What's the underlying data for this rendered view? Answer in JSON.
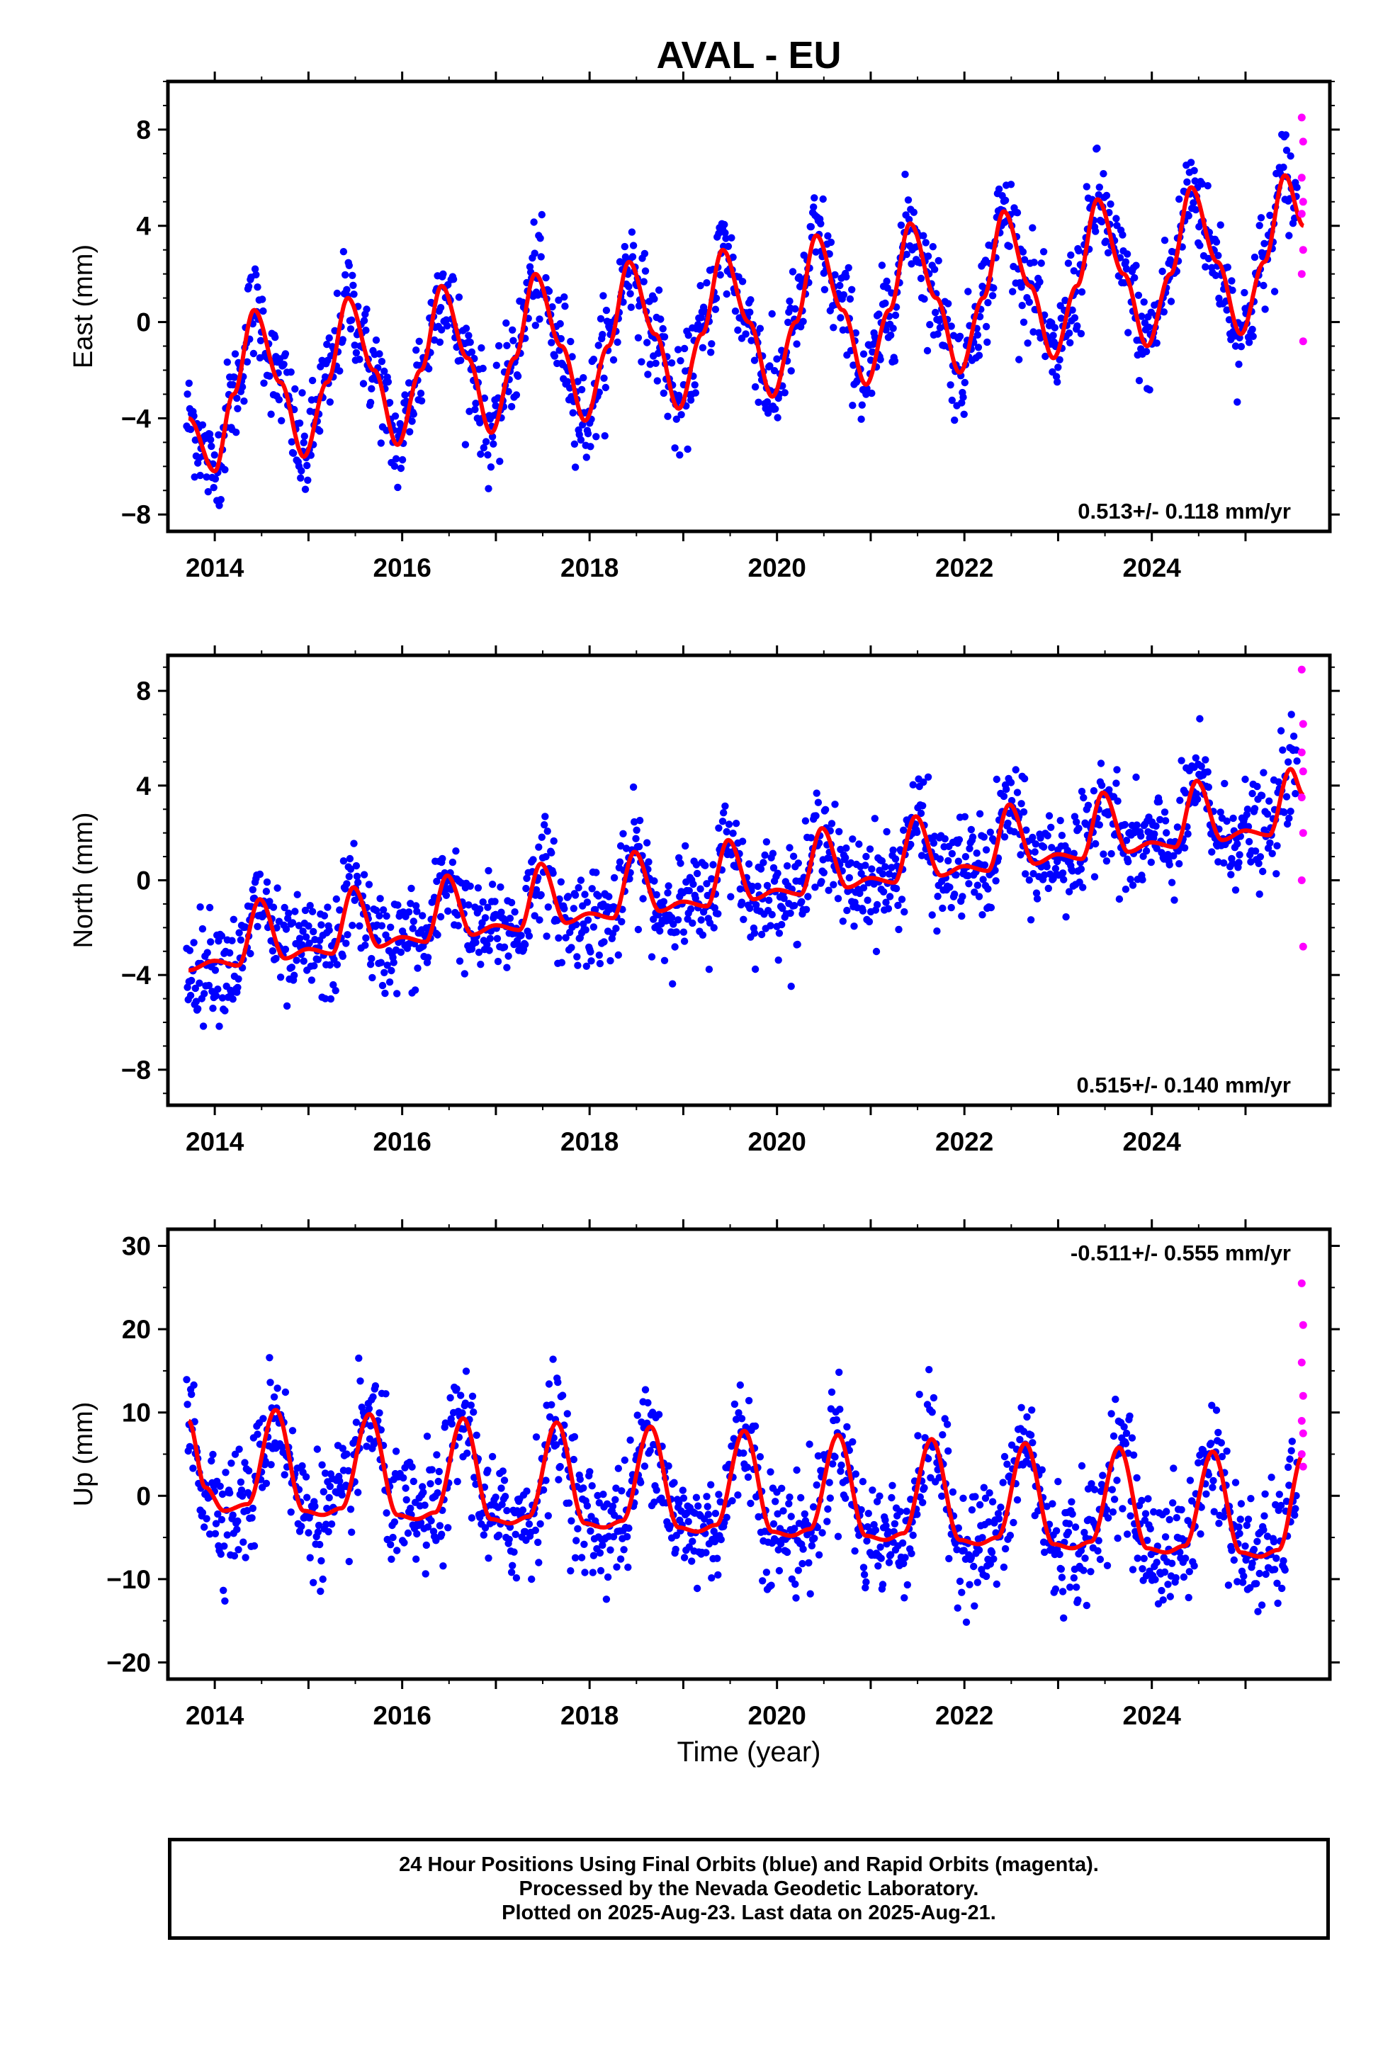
{
  "title": "AVAL - EU",
  "xlabel": "Time (year)",
  "caption": {
    "line1": "24 Hour Positions Using Final Orbits (blue) and Rapid Orbits (magenta).",
    "line2": "Processed by the Nevada Geodetic Laboratory.",
    "line3": "Plotted on 2025-Aug-23. Last data on 2025-Aug-21."
  },
  "colors": {
    "final": "#0000ff",
    "rapid": "#ff00ff",
    "model": "#ff0000",
    "frame": "#000000"
  },
  "chart_data": [
    {
      "type": "scatter",
      "component": "East",
      "ylabel": "East (mm)",
      "xlim": [
        2013.5,
        2025.9
      ],
      "ylim": [
        -8.7,
        10.0
      ],
      "yticks": [
        8,
        4,
        0,
        -4,
        -8
      ],
      "ytick_labels": [
        "8",
        "4",
        "0",
        "−4",
        "−8"
      ],
      "xticks": [
        2014,
        2016,
        2018,
        2020,
        2022,
        2024
      ],
      "xtick_labels": [
        "2014",
        "2016",
        "2018",
        "2020",
        "2022",
        "2024"
      ],
      "rate_label": "0.513+/- 0.118 mm/yr",
      "grid": false,
      "series": [
        {
          "name": "Final Orbits",
          "description": "daily positions, 2013.7–2025.55, scattered around the model"
        },
        {
          "name": "Rapid Orbits",
          "description": "final weeks of data",
          "x": [
            2025.57,
            2025.58,
            2025.59,
            2025.6,
            2025.61,
            2025.62,
            2025.63,
            2025.64
          ],
          "y": [
            8.5,
            7.5,
            6.0,
            5.0,
            4.5,
            3.0,
            2.0,
            -0.8
          ]
        },
        {
          "name": "Model",
          "description": "linear trend plus annual and semiannual terms",
          "x": [
            2013.72,
            2014.0,
            2014.2,
            2014.42,
            2014.7,
            2014.95,
            2015.2,
            2015.42,
            2015.7,
            2015.95,
            2016.2,
            2016.42,
            2016.7,
            2016.95,
            2017.2,
            2017.42,
            2017.7,
            2017.95,
            2018.2,
            2018.42,
            2018.7,
            2018.95,
            2019.2,
            2019.42,
            2019.7,
            2019.95,
            2020.2,
            2020.42,
            2020.7,
            2020.95,
            2021.2,
            2021.42,
            2021.7,
            2021.95,
            2022.2,
            2022.42,
            2022.7,
            2022.95,
            2023.2,
            2023.42,
            2023.7,
            2023.95,
            2024.2,
            2024.42,
            2024.7,
            2024.95,
            2025.2,
            2025.42,
            2025.62
          ],
          "y": [
            -4.0,
            -6.2,
            -3.0,
            0.5,
            -2.5,
            -5.6,
            -2.5,
            1.0,
            -2.0,
            -5.1,
            -2.0,
            1.5,
            -1.5,
            -4.6,
            -1.5,
            2.0,
            -1.0,
            -4.1,
            -1.0,
            2.5,
            -0.5,
            -3.6,
            -0.5,
            3.0,
            0.0,
            -3.1,
            0.0,
            3.6,
            0.5,
            -2.6,
            0.5,
            4.1,
            1.0,
            -2.1,
            1.0,
            4.6,
            1.5,
            -1.5,
            1.5,
            5.1,
            2.0,
            -1.0,
            2.0,
            5.6,
            2.5,
            -0.5,
            2.5,
            6.1,
            4.0
          ]
        }
      ]
    },
    {
      "type": "scatter",
      "component": "North",
      "ylabel": "North (mm)",
      "xlim": [
        2013.5,
        2025.9
      ],
      "ylim": [
        -9.5,
        9.5
      ],
      "yticks": [
        8,
        4,
        0,
        -4,
        -8
      ],
      "ytick_labels": [
        "8",
        "4",
        "0",
        "−4",
        "−8"
      ],
      "xticks": [
        2014,
        2016,
        2018,
        2020,
        2022,
        2024
      ],
      "xtick_labels": [
        "2014",
        "2016",
        "2018",
        "2020",
        "2022",
        "2024"
      ],
      "rate_label": "0.515+/- 0.140 mm/yr",
      "grid": false,
      "series": [
        {
          "name": "Final Orbits",
          "description": "daily positions, 2013.7–2025.55"
        },
        {
          "name": "Rapid Orbits",
          "description": "final weeks of data",
          "x": [
            2025.57,
            2025.58,
            2025.59,
            2025.6,
            2025.61,
            2025.62,
            2025.63,
            2025.64
          ],
          "y": [
            8.9,
            6.6,
            5.4,
            4.6,
            3.5,
            2.0,
            0.0,
            -2.8
          ]
        },
        {
          "name": "Model",
          "description": "linear trend plus annual and semiannual terms",
          "x": [
            2013.72,
            2014.0,
            2014.25,
            2014.48,
            2014.75,
            2015.0,
            2015.25,
            2015.48,
            2015.75,
            2016.0,
            2016.25,
            2016.48,
            2016.75,
            2017.0,
            2017.25,
            2017.48,
            2017.75,
            2018.0,
            2018.25,
            2018.48,
            2018.75,
            2019.0,
            2019.25,
            2019.48,
            2019.75,
            2020.0,
            2020.25,
            2020.48,
            2020.75,
            2021.0,
            2021.25,
            2021.48,
            2021.75,
            2022.0,
            2022.25,
            2022.48,
            2022.75,
            2023.0,
            2023.25,
            2023.48,
            2023.75,
            2024.0,
            2024.25,
            2024.48,
            2024.75,
            2025.0,
            2025.25,
            2025.48,
            2025.62
          ],
          "y": [
            -3.8,
            -3.4,
            -3.6,
            -0.8,
            -3.3,
            -2.9,
            -3.1,
            -0.3,
            -2.8,
            -2.4,
            -2.6,
            0.2,
            -2.3,
            -1.9,
            -2.1,
            0.7,
            -1.8,
            -1.4,
            -1.6,
            1.2,
            -1.3,
            -0.9,
            -1.1,
            1.7,
            -0.8,
            -0.4,
            -0.6,
            2.2,
            -0.3,
            0.1,
            -0.1,
            2.7,
            0.2,
            0.6,
            0.4,
            3.2,
            0.7,
            1.1,
            0.9,
            3.7,
            1.2,
            1.6,
            1.4,
            4.2,
            1.7,
            2.1,
            1.9,
            4.7,
            3.6
          ]
        }
      ]
    },
    {
      "type": "scatter",
      "component": "Up",
      "ylabel": "Up (mm)",
      "xlim": [
        2013.5,
        2025.9
      ],
      "ylim": [
        -22,
        32
      ],
      "yticks": [
        30,
        20,
        10,
        0,
        -10,
        -20
      ],
      "ytick_labels": [
        "30",
        "20",
        "10",
        "0",
        "−10",
        "−20"
      ],
      "xticks": [
        2014,
        2016,
        2018,
        2020,
        2022,
        2024
      ],
      "xtick_labels": [
        "2014",
        "2016",
        "2018",
        "2020",
        "2022",
        "2024"
      ],
      "rate_label": "-0.511+/- 0.555 mm/yr",
      "grid": false,
      "series": [
        {
          "name": "Final Orbits",
          "description": "daily positions, 2013.7–2025.55"
        },
        {
          "name": "Rapid Orbits",
          "description": "final weeks of data",
          "x": [
            2025.57,
            2025.58,
            2025.59,
            2025.6,
            2025.61,
            2025.62,
            2025.63,
            2025.64
          ],
          "y": [
            25.5,
            20.5,
            16.0,
            12.0,
            9.0,
            7.5,
            5.0,
            3.5
          ]
        },
        {
          "name": "Model",
          "description": "linear trend plus annual and semiannual terms",
          "x": [
            2013.72,
            2013.9,
            2014.1,
            2014.35,
            2014.65,
            2014.95,
            2015.15,
            2015.35,
            2015.65,
            2015.95,
            2016.15,
            2016.35,
            2016.65,
            2016.95,
            2017.15,
            2017.35,
            2017.65,
            2017.95,
            2018.15,
            2018.35,
            2018.65,
            2018.95,
            2019.15,
            2019.35,
            2019.65,
            2019.95,
            2020.15,
            2020.35,
            2020.65,
            2020.95,
            2021.15,
            2021.35,
            2021.65,
            2021.95,
            2022.15,
            2022.35,
            2022.65,
            2022.95,
            2023.15,
            2023.35,
            2023.65,
            2023.95,
            2024.15,
            2024.35,
            2024.65,
            2024.95,
            2025.15,
            2025.35,
            2025.62
          ],
          "y": [
            9.0,
            1.0,
            -1.8,
            -1.0,
            10.3,
            -1.8,
            -2.3,
            -1.5,
            9.8,
            -2.3,
            -2.8,
            -2.0,
            9.3,
            -2.8,
            -3.3,
            -2.5,
            8.8,
            -3.3,
            -3.8,
            -3.0,
            8.3,
            -3.8,
            -4.3,
            -3.5,
            7.8,
            -4.3,
            -4.8,
            -4.0,
            7.3,
            -4.8,
            -5.3,
            -4.5,
            6.8,
            -5.3,
            -5.8,
            -5.0,
            6.3,
            -5.8,
            -6.3,
            -5.5,
            5.8,
            -6.3,
            -6.8,
            -6.0,
            5.3,
            -6.8,
            -7.3,
            -6.5,
            5.0
          ]
        }
      ]
    }
  ]
}
